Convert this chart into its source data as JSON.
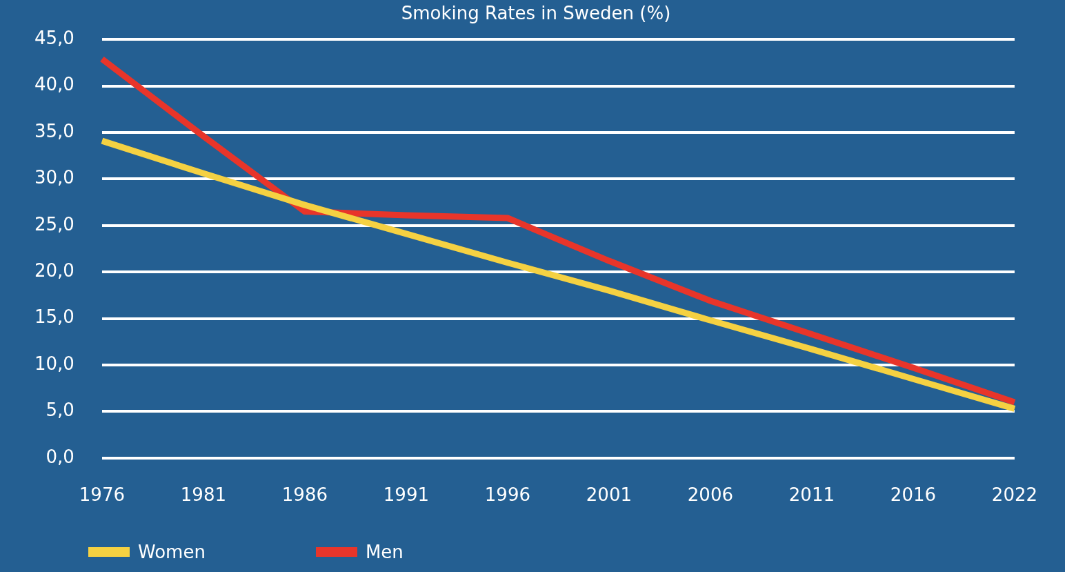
{
  "chart_data": {
    "type": "line",
    "title": "Smoking Rates in Sweden (%)",
    "categories": [
      "1976",
      "1981",
      "1986",
      "1991",
      "1996",
      "2001",
      "2006",
      "2011",
      "2016",
      "2022"
    ],
    "series": [
      {
        "name": "Women",
        "color": "#f5d142",
        "values": [
          34.1,
          30.6,
          27.2,
          24.1,
          21.0,
          18.0,
          14.8,
          11.7,
          8.5,
          5.3
        ]
      },
      {
        "name": "Men",
        "color": "#e8352a",
        "values": [
          42.9,
          34.6,
          26.5,
          26.1,
          25.8,
          21.2,
          16.9,
          13.3,
          9.7,
          6.0
        ]
      }
    ],
    "ylim": [
      0,
      45
    ],
    "yticks": [
      {
        "value": 0,
        "label": "0,0"
      },
      {
        "value": 5,
        "label": "5,0"
      },
      {
        "value": 10,
        "label": "10,0"
      },
      {
        "value": 15,
        "label": "15,0"
      },
      {
        "value": 20,
        "label": "20,0"
      },
      {
        "value": 25,
        "label": "25,0"
      },
      {
        "value": 30,
        "label": "30,0"
      },
      {
        "value": 35,
        "label": "35,0"
      },
      {
        "value": 40,
        "label": "40,0"
      },
      {
        "value": 45,
        "label": "45,0"
      }
    ],
    "grid": "y",
    "legend": "bottom left",
    "marker": "none",
    "line_style": "solid"
  }
}
